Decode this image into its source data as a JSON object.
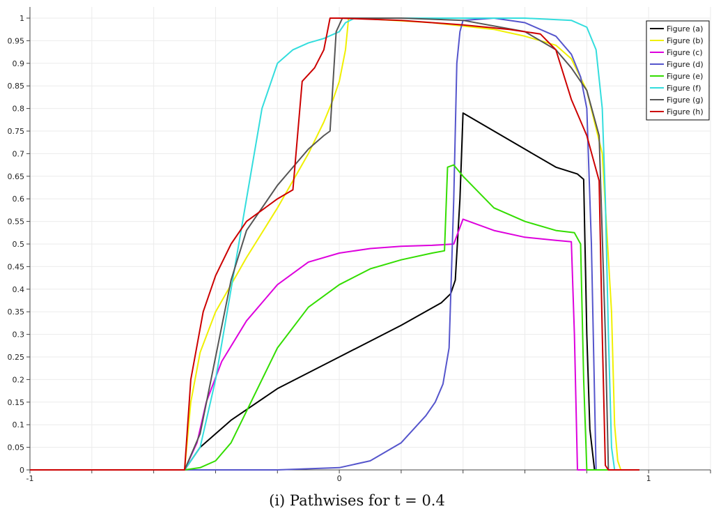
{
  "caption": "(i) Pathwises for t = 0.4",
  "chart_data": {
    "type": "line",
    "title": "",
    "xlabel": "",
    "ylabel": "",
    "xlim": [
      -1,
      1.2
    ],
    "ylim": [
      0,
      1
    ],
    "grid": true,
    "legend_position": "top-right",
    "x_ticks": [
      -1,
      -0.8,
      -0.6,
      -0.4,
      -0.2,
      0,
      0.2,
      0.4,
      0.6,
      0.8,
      1,
      1.2
    ],
    "x_tick_labels": [
      "-1",
      "",
      "",
      "",
      "",
      "0",
      "",
      "",
      "",
      "",
      "1",
      ""
    ],
    "y_ticks": [
      0,
      0.05,
      0.1,
      0.15,
      0.2,
      0.25,
      0.3,
      0.35,
      0.4,
      0.45,
      0.5,
      0.55,
      0.6,
      0.65,
      0.7,
      0.75,
      0.8,
      0.85,
      0.9,
      0.95,
      1
    ],
    "y_tick_labels": [
      "0",
      "0.05",
      "0.1",
      "0.15",
      "0.2",
      "0.25",
      "0.3",
      "0.35",
      "0.4",
      "0.45",
      "0.5",
      "0.55",
      "0.6",
      "0.65",
      "0.7",
      "0.75",
      "0.8",
      "0.85",
      "0.9",
      "0.95",
      "1"
    ],
    "series": [
      {
        "name": "Figure (a)",
        "color": "#000000",
        "points": [
          [
            -1,
            0
          ],
          [
            -0.5,
            0
          ],
          [
            -0.45,
            0.05
          ],
          [
            -0.35,
            0.11
          ],
          [
            -0.2,
            0.18
          ],
          [
            0,
            0.25
          ],
          [
            0.2,
            0.32
          ],
          [
            0.33,
            0.37
          ],
          [
            0.36,
            0.39
          ],
          [
            0.375,
            0.42
          ],
          [
            0.39,
            0.6
          ],
          [
            0.4,
            0.79
          ],
          [
            0.5,
            0.75
          ],
          [
            0.6,
            0.71
          ],
          [
            0.7,
            0.67
          ],
          [
            0.77,
            0.655
          ],
          [
            0.79,
            0.643
          ],
          [
            0.8,
            0.3
          ],
          [
            0.81,
            0.09
          ],
          [
            0.825,
            0
          ],
          [
            0.97,
            0
          ]
        ]
      },
      {
        "name": "Figure (b)",
        "color": "#f0f000",
        "points": [
          [
            -1,
            0
          ],
          [
            -0.5,
            0
          ],
          [
            -0.48,
            0.15
          ],
          [
            -0.45,
            0.26
          ],
          [
            -0.4,
            0.35
          ],
          [
            -0.3,
            0.47
          ],
          [
            -0.2,
            0.58
          ],
          [
            -0.1,
            0.7
          ],
          [
            -0.05,
            0.77
          ],
          [
            -0.02,
            0.82
          ],
          [
            0,
            0.86
          ],
          [
            0.02,
            0.93
          ],
          [
            0.03,
            1
          ],
          [
            0.1,
            0.998
          ],
          [
            0.3,
            0.99
          ],
          [
            0.5,
            0.975
          ],
          [
            0.6,
            0.96
          ],
          [
            0.7,
            0.94
          ],
          [
            0.75,
            0.91
          ],
          [
            0.8,
            0.84
          ],
          [
            0.85,
            0.7
          ],
          [
            0.88,
            0.35
          ],
          [
            0.89,
            0.1
          ],
          [
            0.9,
            0.02
          ],
          [
            0.91,
            0
          ],
          [
            0.97,
            0
          ]
        ]
      },
      {
        "name": "Figure (c)",
        "color": "#dd00dd",
        "points": [
          [
            -1,
            0
          ],
          [
            -0.5,
            0
          ],
          [
            -0.46,
            0.06
          ],
          [
            -0.43,
            0.15
          ],
          [
            -0.38,
            0.24
          ],
          [
            -0.3,
            0.33
          ],
          [
            -0.2,
            0.41
          ],
          [
            -0.1,
            0.46
          ],
          [
            0,
            0.48
          ],
          [
            0.1,
            0.49
          ],
          [
            0.2,
            0.495
          ],
          [
            0.3,
            0.497
          ],
          [
            0.37,
            0.5
          ],
          [
            0.4,
            0.555
          ],
          [
            0.5,
            0.53
          ],
          [
            0.6,
            0.515
          ],
          [
            0.7,
            0.508
          ],
          [
            0.75,
            0.505
          ],
          [
            0.76,
            0.3
          ],
          [
            0.77,
            0
          ],
          [
            0.97,
            0
          ]
        ]
      },
      {
        "name": "Figure (d)",
        "color": "#5555cc",
        "points": [
          [
            -1,
            0
          ],
          [
            -0.2,
            0
          ],
          [
            0,
            0.005
          ],
          [
            0.1,
            0.02
          ],
          [
            0.2,
            0.06
          ],
          [
            0.28,
            0.12
          ],
          [
            0.31,
            0.15
          ],
          [
            0.335,
            0.19
          ],
          [
            0.355,
            0.27
          ],
          [
            0.37,
            0.6
          ],
          [
            0.38,
            0.9
          ],
          [
            0.39,
            0.97
          ],
          [
            0.4,
            0.995
          ],
          [
            0.5,
            1
          ],
          [
            0.6,
            0.99
          ],
          [
            0.7,
            0.96
          ],
          [
            0.75,
            0.92
          ],
          [
            0.78,
            0.87
          ],
          [
            0.8,
            0.8
          ],
          [
            0.815,
            0.5
          ],
          [
            0.83,
            0
          ],
          [
            0.97,
            0
          ]
        ]
      },
      {
        "name": "Figure (e)",
        "color": "#33dd00",
        "points": [
          [
            -1,
            0
          ],
          [
            -0.5,
            0
          ],
          [
            -0.45,
            0.005
          ],
          [
            -0.4,
            0.02
          ],
          [
            -0.35,
            0.06
          ],
          [
            -0.3,
            0.13
          ],
          [
            -0.2,
            0.27
          ],
          [
            -0.1,
            0.36
          ],
          [
            0,
            0.41
          ],
          [
            0.1,
            0.445
          ],
          [
            0.2,
            0.465
          ],
          [
            0.3,
            0.48
          ],
          [
            0.34,
            0.485
          ],
          [
            0.35,
            0.67
          ],
          [
            0.37,
            0.675
          ],
          [
            0.4,
            0.65
          ],
          [
            0.5,
            0.58
          ],
          [
            0.6,
            0.55
          ],
          [
            0.7,
            0.53
          ],
          [
            0.76,
            0.525
          ],
          [
            0.78,
            0.5
          ],
          [
            0.79,
            0.2
          ],
          [
            0.8,
            0
          ],
          [
            0.97,
            0
          ]
        ]
      },
      {
        "name": "Figure (f)",
        "color": "#33dddd",
        "points": [
          [
            -1,
            0
          ],
          [
            -0.5,
            0
          ],
          [
            -0.45,
            0.05
          ],
          [
            -0.4,
            0.2
          ],
          [
            -0.35,
            0.4
          ],
          [
            -0.3,
            0.6
          ],
          [
            -0.25,
            0.8
          ],
          [
            -0.2,
            0.9
          ],
          [
            -0.15,
            0.93
          ],
          [
            -0.1,
            0.945
          ],
          [
            -0.05,
            0.955
          ],
          [
            0,
            0.97
          ],
          [
            0.02,
            0.99
          ],
          [
            0.05,
            1
          ],
          [
            0.2,
            1
          ],
          [
            0.4,
            1
          ],
          [
            0.6,
            1
          ],
          [
            0.75,
            0.995
          ],
          [
            0.8,
            0.98
          ],
          [
            0.83,
            0.93
          ],
          [
            0.85,
            0.8
          ],
          [
            0.86,
            0.6
          ],
          [
            0.87,
            0.3
          ],
          [
            0.88,
            0.05
          ],
          [
            0.89,
            0
          ],
          [
            0.97,
            0
          ]
        ]
      },
      {
        "name": "Figure (g)",
        "color": "#555555",
        "points": [
          [
            -1,
            0
          ],
          [
            -0.5,
            0
          ],
          [
            -0.45,
            0.08
          ],
          [
            -0.4,
            0.25
          ],
          [
            -0.35,
            0.42
          ],
          [
            -0.3,
            0.53
          ],
          [
            -0.2,
            0.63
          ],
          [
            -0.1,
            0.71
          ],
          [
            -0.05,
            0.74
          ],
          [
            -0.03,
            0.75
          ],
          [
            -0.01,
            0.97
          ],
          [
            0.01,
            1
          ],
          [
            0.2,
            1
          ],
          [
            0.4,
            0.995
          ],
          [
            0.6,
            0.97
          ],
          [
            0.7,
            0.93
          ],
          [
            0.75,
            0.89
          ],
          [
            0.8,
            0.84
          ],
          [
            0.84,
            0.74
          ],
          [
            0.86,
            0.3
          ],
          [
            0.87,
            0
          ],
          [
            0.97,
            0
          ]
        ]
      },
      {
        "name": "Figure (h)",
        "color": "#cc0000",
        "points": [
          [
            -1,
            0
          ],
          [
            -0.5,
            0
          ],
          [
            -0.48,
            0.2
          ],
          [
            -0.44,
            0.35
          ],
          [
            -0.4,
            0.43
          ],
          [
            -0.35,
            0.5
          ],
          [
            -0.3,
            0.55
          ],
          [
            -0.2,
            0.6
          ],
          [
            -0.15,
            0.62
          ],
          [
            -0.12,
            0.86
          ],
          [
            -0.08,
            0.89
          ],
          [
            -0.05,
            0.93
          ],
          [
            -0.03,
            1
          ],
          [
            0,
            1
          ],
          [
            0.2,
            0.995
          ],
          [
            0.4,
            0.985
          ],
          [
            0.55,
            0.975
          ],
          [
            0.65,
            0.965
          ],
          [
            0.7,
            0.93
          ],
          [
            0.75,
            0.82
          ],
          [
            0.8,
            0.74
          ],
          [
            0.82,
            0.69
          ],
          [
            0.84,
            0.64
          ],
          [
            0.85,
            0.3
          ],
          [
            0.86,
            0.01
          ],
          [
            0.87,
            0
          ],
          [
            0.97,
            0
          ]
        ]
      }
    ]
  }
}
